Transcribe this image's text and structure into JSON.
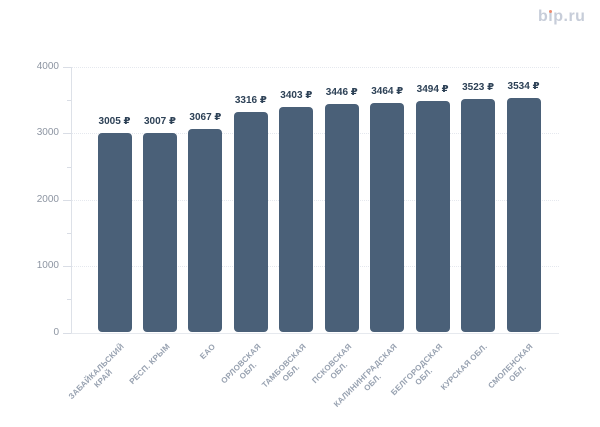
{
  "logo": {
    "text": "bip.ru",
    "seg_b": "b",
    "seg_i": "ı",
    "seg_rest": "p.ru",
    "color": "#c7cdd9",
    "dot_color": "#ec8a6e"
  },
  "chart_data": {
    "type": "bar",
    "title": "",
    "categories": [
      "ЗАБАЙКАЛЬСКИЙ КРАЙ",
      "РЕСП. КРЫМ",
      "ЕАО",
      "ОРЛОВСКАЯ ОБЛ.",
      "ТАМБОВСКАЯ ОБЛ.",
      "ПСКОВСКАЯ ОБЛ.",
      "КАЛИНИНГРАДСКАЯ ОБЛ.",
      "БЕЛГОРОДСКАЯ ОБЛ.",
      "КУРСКАЯ ОБЛ.",
      "СМОЛЕНСКАЯ ОБЛ."
    ],
    "category_lines": [
      [
        "ЗАБАЙКАЛЬСКИЙ",
        "КРАЙ"
      ],
      [
        "РЕСП. КРЫМ"
      ],
      [
        "ЕАО"
      ],
      [
        "ОРЛОВСКАЯ",
        "ОБЛ."
      ],
      [
        "ТАМБОВСКАЯ",
        "ОБЛ."
      ],
      [
        "ПСКОВСКАЯ",
        "ОБЛ."
      ],
      [
        "КАЛИНИНГРАДСКАЯ",
        "ОБЛ."
      ],
      [
        "БЕЛГОРОДСКАЯ",
        "ОБЛ."
      ],
      [
        "КУРСКАЯ ОБЛ."
      ],
      [
        "СМОЛЕНСКАЯ",
        "ОБЛ."
      ]
    ],
    "values": [
      3005,
      3007,
      3067,
      3316,
      3403,
      3446,
      3464,
      3494,
      3523,
      3534
    ],
    "value_labels": [
      "3005 ₽",
      "3007 ₽",
      "3067 ₽",
      "3316 ₽",
      "3403 ₽",
      "3446 ₽",
      "3464 ₽",
      "3494 ₽",
      "3523 ₽",
      "3534 ₽"
    ],
    "unit": "₽",
    "xlabel": "",
    "ylabel": "",
    "ylim": [
      0,
      4000
    ],
    "yticks": [
      0,
      1000,
      2000,
      3000,
      4000
    ],
    "ytick_labels": [
      "0",
      "1000",
      "2000",
      "3000",
      "4000"
    ],
    "minor_tick_step": 500,
    "grid": "horizontal-dotted",
    "legend": false,
    "colors": {
      "bar": "#4a6078",
      "value_label": "#2d4156",
      "axis_label": "#8d95a2",
      "category_label": "#97a1b0",
      "gridline": "#e5e8ee",
      "axis_line": "#dde1e8"
    }
  }
}
